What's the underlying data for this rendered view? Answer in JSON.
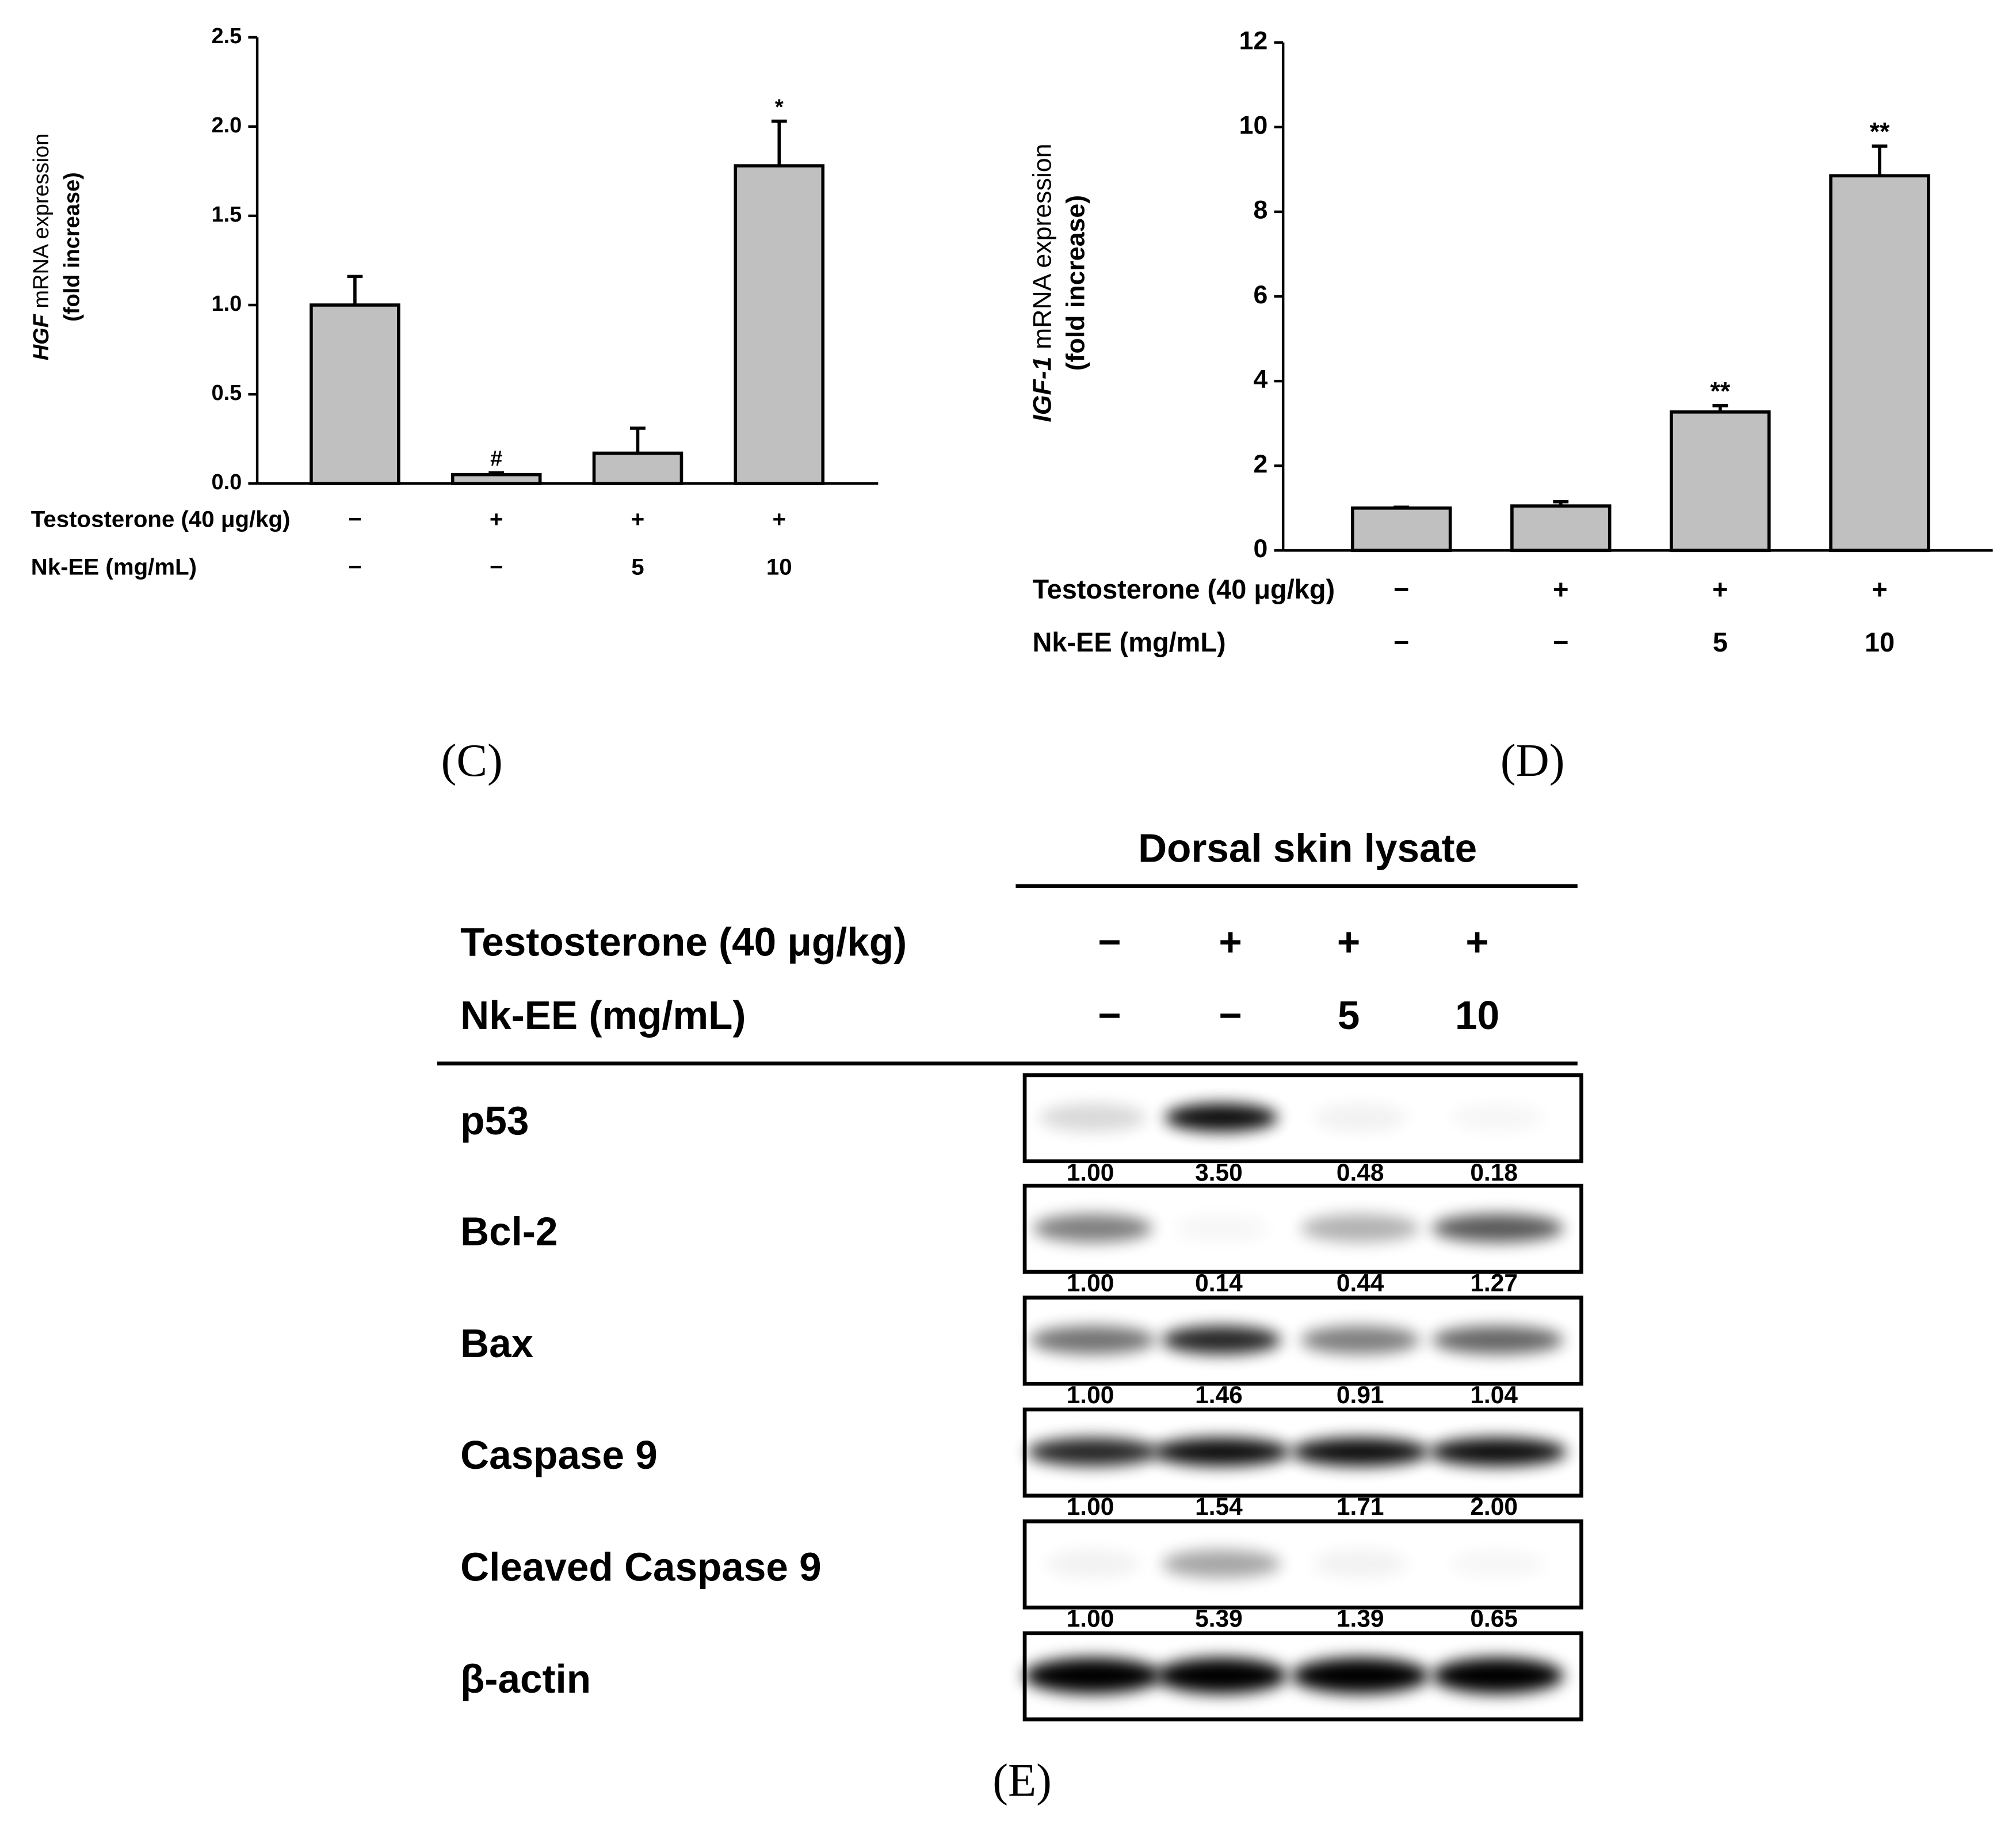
{
  "chart_data": [
    {
      "type": "bar",
      "ylabel": {
        "gene": "HGF",
        "text": " mRNA expression",
        "unit": "(fold increase)"
      },
      "values": [
        1.0,
        0.05,
        0.17,
        1.78
      ],
      "errors": [
        0.16,
        0.01,
        0.14,
        0.25
      ],
      "annotations": [
        null,
        "#",
        null,
        "*"
      ],
      "color": "#c0c0c0",
      "ylim": [
        0,
        2.5
      ],
      "yticks": [
        {
          "value": 0,
          "label": "0.0"
        },
        0.5,
        {
          "value": 1,
          "label": "1.0"
        },
        1.5,
        {
          "value": 2,
          "label": "2.0"
        },
        2.5
      ],
      "treatments": [
        {
          "label": "Testosterone (40 μg/kg)",
          "levels": [
            "−",
            "+",
            "+",
            "+"
          ]
        },
        {
          "label": "Nk-EE (mg/mL)",
          "levels": [
            "−",
            "−",
            "5",
            "10"
          ]
        }
      ]
    },
    {
      "type": "bar",
      "ylabel": {
        "gene": "IGF-1",
        "text": " mRNA expression",
        "unit": "(fold increase)"
      },
      "values": [
        1.0,
        1.05,
        3.27,
        8.85
      ],
      "errors": [
        0.02,
        0.1,
        0.15,
        0.7
      ],
      "annotations": [
        null,
        null,
        "**",
        "**"
      ],
      "color": "#c0c0c0",
      "ylim": [
        0,
        12
      ],
      "yticks": [
        0,
        2,
        4,
        6,
        8,
        10,
        12
      ],
      "treatments": [
        {
          "label": "Testosterone (40 μg/kg)",
          "levels": [
            "−",
            "+",
            "+",
            "+"
          ]
        },
        {
          "label": "Nk-EE (mg/mL)",
          "levels": [
            "−",
            "−",
            "5",
            "10"
          ]
        }
      ]
    }
  ],
  "panel_labels": [
    "(C)",
    "(D)",
    "(E)"
  ],
  "blot": {
    "title": "Dorsal skin lysate",
    "treatments": [
      {
        "label": "Testosterone (40 μg/kg)",
        "levels": [
          "−",
          "+",
          "+",
          "+"
        ]
      },
      {
        "label": "Nk-EE (mg/mL)",
        "levels": [
          "−",
          "−",
          "5",
          "10"
        ]
      }
    ],
    "rows": [
      {
        "label": "p53",
        "quant": [
          "1.00",
          "3.50",
          "0.48",
          "0.18"
        ]
      },
      {
        "label": "Bcl-2",
        "quant": [
          "1.00",
          "0.14",
          "0.44",
          "1.27"
        ]
      },
      {
        "label": "Bax",
        "quant": [
          "1.00",
          "1.46",
          "0.91",
          "1.04"
        ]
      },
      {
        "label": "Caspase 9",
        "quant": [
          "1.00",
          "1.54",
          "1.71",
          "2.00"
        ]
      },
      {
        "label": "Cleaved Caspase 9",
        "quant": [
          "1.00",
          "5.39",
          "1.39",
          "0.65"
        ]
      },
      {
        "label": "β-actin"
      }
    ]
  }
}
